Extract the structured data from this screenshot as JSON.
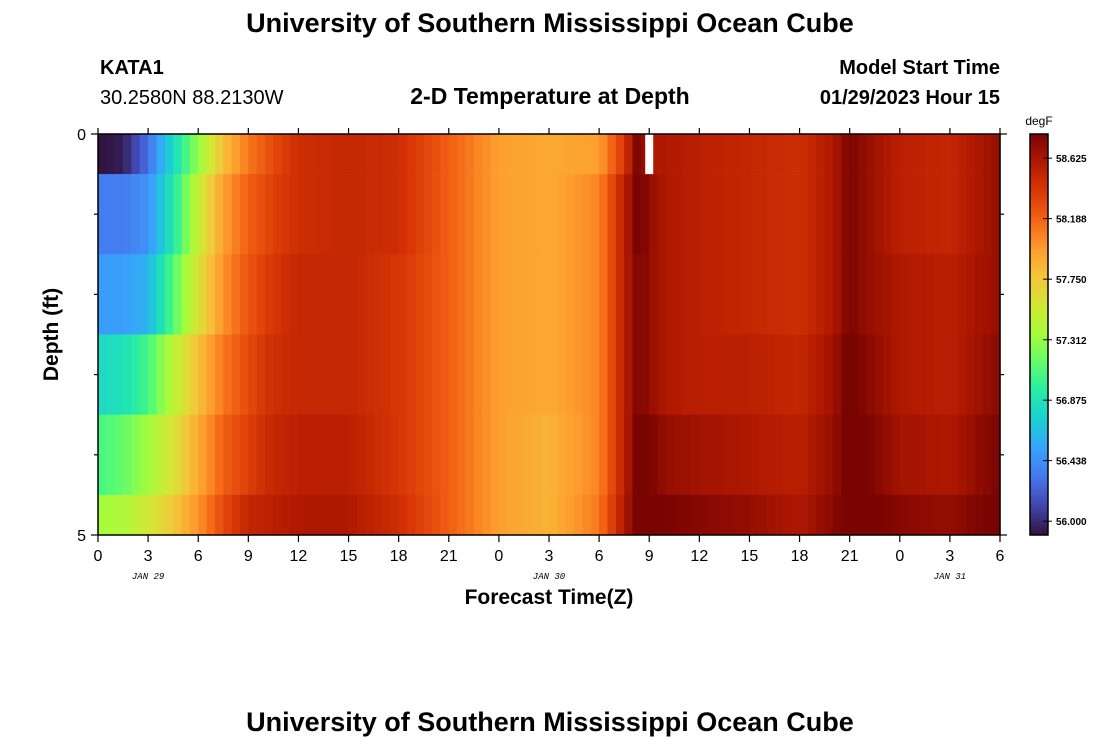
{
  "header": {
    "title": "University of Southern Mississippi Ocean Cube",
    "station_id": "KATA1",
    "station_coords": "30.2580N  88.2130W",
    "subtitle": "2-D Temperature at Depth",
    "model_label": "Model Start Time",
    "model_time": "01/29/2023 Hour 15"
  },
  "footer": {
    "title": "University of Southern Mississippi Ocean Cube"
  },
  "chart_data": {
    "type": "heatmap",
    "title": "2-D Temperature at Depth",
    "xlabel": "Forecast Time(Z)",
    "ylabel": "Depth (ft)",
    "x_tick_labels": [
      "0",
      "3",
      "6",
      "9",
      "12",
      "15",
      "18",
      "21",
      "0",
      "3",
      "6",
      "9",
      "12",
      "15",
      "18",
      "21",
      "0",
      "3",
      "6"
    ],
    "date_labels": [
      {
        "label": "JAN 29",
        "at_hour": 3
      },
      {
        "label": "JAN 30",
        "at_hour": 27
      },
      {
        "label": "JAN 31",
        "at_hour": 51
      }
    ],
    "x_range_hours": [
      0,
      54
    ],
    "y_tick_labels": [
      "0",
      "5"
    ],
    "y_range_ft": [
      0,
      5
    ],
    "colorbar": {
      "unit": "degF",
      "min": 55.9,
      "max": 58.8,
      "tick_labels": [
        "58.625",
        "58.188",
        "57.750",
        "57.312",
        "56.875",
        "56.438",
        "56.000"
      ]
    },
    "depth_layers_ft": [
      {
        "top": 0,
        "bottom": 0.5
      },
      {
        "top": 0.5,
        "bottom": 1.5
      },
      {
        "top": 1.5,
        "bottom": 2.5
      },
      {
        "top": 2.5,
        "bottom": 3.5
      },
      {
        "top": 3.5,
        "bottom": 4.5
      },
      {
        "top": 4.5,
        "bottom": 5
      }
    ],
    "temperature_keyframes": {
      "hours": [
        0,
        1.5,
        3,
        4.5,
        6,
        7.5,
        9,
        10.5,
        12,
        15,
        18,
        21,
        24,
        27,
        30,
        31.5,
        32.4,
        33,
        34,
        36,
        39,
        42,
        44,
        45,
        46,
        48,
        51,
        54
      ],
      "values_degF": [
        [
          55.9,
          55.95,
          56.3,
          56.8,
          57.3,
          57.8,
          58.1,
          58.3,
          58.45,
          58.5,
          58.45,
          58.2,
          57.95,
          57.9,
          57.95,
          58.4,
          58.85,
          58.6,
          58.6,
          58.55,
          58.5,
          58.45,
          58.6,
          58.8,
          58.7,
          58.55,
          58.5,
          58.7
        ],
        [
          56.35,
          56.35,
          56.45,
          56.9,
          57.5,
          57.95,
          58.2,
          58.35,
          58.45,
          58.5,
          58.45,
          58.2,
          57.95,
          57.9,
          58.05,
          58.55,
          58.85,
          58.7,
          58.6,
          58.55,
          58.5,
          58.45,
          58.6,
          58.8,
          58.7,
          58.55,
          58.5,
          58.7
        ],
        [
          56.5,
          56.5,
          56.6,
          57.1,
          57.6,
          58.0,
          58.25,
          58.4,
          58.5,
          58.5,
          58.4,
          58.2,
          57.95,
          57.9,
          58.05,
          58.55,
          58.8,
          58.7,
          58.6,
          58.55,
          58.5,
          58.45,
          58.6,
          58.8,
          58.7,
          58.6,
          58.55,
          58.7
        ],
        [
          56.8,
          56.85,
          57.05,
          57.45,
          57.8,
          58.1,
          58.3,
          58.45,
          58.5,
          58.5,
          58.4,
          58.2,
          57.95,
          57.9,
          58.05,
          58.55,
          58.8,
          58.7,
          58.6,
          58.55,
          58.55,
          58.5,
          58.65,
          58.85,
          58.75,
          58.6,
          58.55,
          58.75
        ],
        [
          57.05,
          57.15,
          57.35,
          57.6,
          57.9,
          58.2,
          58.35,
          58.5,
          58.55,
          58.55,
          58.4,
          58.2,
          57.95,
          57.85,
          58.05,
          58.55,
          58.85,
          58.8,
          58.7,
          58.65,
          58.6,
          58.55,
          58.7,
          58.85,
          58.8,
          58.65,
          58.6,
          58.8
        ],
        [
          57.35,
          57.4,
          57.55,
          57.75,
          58.0,
          58.3,
          58.5,
          58.55,
          58.6,
          58.6,
          58.45,
          58.2,
          57.95,
          57.85,
          58.1,
          58.6,
          58.85,
          58.85,
          58.8,
          58.75,
          58.7,
          58.6,
          58.75,
          58.85,
          58.85,
          58.75,
          58.7,
          58.85
        ]
      ]
    },
    "missing_marker": {
      "hour": 33,
      "top_layer_only": true
    }
  },
  "colors": {
    "colormap": [
      "#30123b",
      "#4145ab",
      "#4675ed",
      "#39a2fc",
      "#1bcfd4",
      "#24eca6",
      "#61fc6c",
      "#a4fc3b",
      "#d1e834",
      "#f3c63a",
      "#fe9b2d",
      "#f36315",
      "#d93806",
      "#b11901",
      "#7a0402"
    ],
    "axis": "#000000",
    "background": "#ffffff"
  }
}
